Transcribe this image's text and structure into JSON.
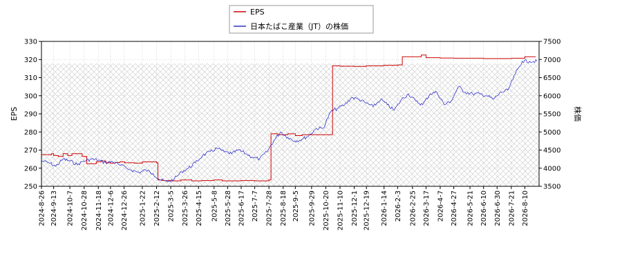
{
  "chart_data": {
    "type": "line",
    "title": "",
    "xlabel": "",
    "ylabel_left": "EPS",
    "ylabel_right": "株価",
    "ylim_left": [
      250,
      330
    ],
    "ylim_right": [
      3500,
      7500
    ],
    "yticks_left": [
      250,
      260,
      270,
      280,
      290,
      300,
      310,
      320,
      330
    ],
    "yticks_right": [
      3500,
      4000,
      4500,
      5000,
      5500,
      6000,
      6500,
      7000,
      7500
    ],
    "xlim": [
      "2024-08-26",
      "2026-08-31"
    ],
    "xticks": [
      "2024-8-26",
      "2024-9-13",
      "2024-10-7",
      "2024-10-28",
      "2024-11-18",
      "2024-12-6",
      "2024-12-26",
      "2025-1-22",
      "2025-2-12",
      "2025-3-5",
      "2025-3-26",
      "2025-4-15",
      "2025-5-8",
      "2025-5-28",
      "2025-6-17",
      "2025-7-7",
      "2025-7-28",
      "2025-8-18",
      "2025-9-5",
      "2025-9-29",
      "2025-10-20",
      "2025-11-10",
      "2025-12-1",
      "2025-12-19",
      "2026-1-14",
      "2026-2-3",
      "2026-2-25",
      "2026-3-17",
      "2026-4-7",
      "2026-4-27",
      "2026-5-21",
      "2026-6-10",
      "2026-6-30",
      "2026-7-21",
      "2026-8-10"
    ],
    "grid": true,
    "legend_position": "top-center",
    "series": [
      {
        "name": "EPS",
        "color": "#cc0000",
        "axis": "left",
        "x": [
          "2024-08-26",
          "2024-09-02",
          "2024-09-10",
          "2024-09-13",
          "2024-09-20",
          "2024-09-27",
          "2024-10-04",
          "2024-10-10",
          "2024-10-18",
          "2024-10-25",
          "2024-11-01",
          "2024-11-08",
          "2024-11-15",
          "2024-11-22",
          "2024-11-29",
          "2024-12-06",
          "2024-12-13",
          "2024-12-20",
          "2024-12-27",
          "2025-01-10",
          "2025-01-22",
          "2025-02-12",
          "2025-02-14",
          "2025-02-20",
          "2025-03-05",
          "2025-03-20",
          "2025-04-05",
          "2025-04-20",
          "2025-05-08",
          "2025-05-20",
          "2025-06-05",
          "2025-06-17",
          "2025-07-07",
          "2025-07-20",
          "2025-07-28",
          "2025-07-31",
          "2025-08-10",
          "2025-08-25",
          "2025-09-05",
          "2025-09-15",
          "2025-09-29",
          "2025-10-10",
          "2025-10-20",
          "2025-10-28",
          "2025-10-30",
          "2025-11-10",
          "2025-12-01",
          "2025-12-19",
          "2026-01-14",
          "2026-02-03",
          "2026-02-10",
          "2026-02-25",
          "2026-03-10",
          "2026-03-17",
          "2026-04-07",
          "2026-04-27",
          "2026-05-21",
          "2026-06-10",
          "2026-06-30",
          "2026-07-21",
          "2026-08-10",
          "2026-08-26"
        ],
        "values": [
          267.5,
          267.5,
          268.0,
          267.0,
          266.5,
          268.0,
          267.0,
          268.0,
          268.0,
          266.5,
          262.5,
          262.5,
          263.5,
          264.0,
          263.0,
          262.8,
          263.2,
          263.5,
          263.0,
          262.8,
          263.5,
          263.0,
          253.5,
          253.2,
          253.0,
          253.5,
          253.0,
          253.2,
          253.5,
          253.0,
          253.0,
          253.2,
          253.0,
          253.0,
          253.5,
          279.0,
          278.5,
          279.0,
          278.0,
          278.5,
          278.5,
          278.5,
          278.5,
          278.5,
          316.5,
          316.3,
          316.2,
          316.5,
          316.8,
          317.0,
          321.5,
          321.5,
          322.5,
          321.0,
          320.8,
          320.7,
          320.7,
          320.5,
          320.5,
          320.7,
          321.5,
          321.5
        ]
      },
      {
        "name": "日本たばこ産業（JT）の株価",
        "color": "#3333cc",
        "axis": "right",
        "x": [
          "2024-08-26",
          "2024-09-06",
          "2024-09-16",
          "2024-09-27",
          "2024-10-07",
          "2024-10-18",
          "2024-10-28",
          "2024-11-08",
          "2024-11-18",
          "2024-11-29",
          "2024-12-09",
          "2024-12-20",
          "2025-01-06",
          "2025-01-17",
          "2025-01-27",
          "2025-02-07",
          "2025-02-17",
          "2025-02-28",
          "2025-03-10",
          "2025-03-21",
          "2025-03-31",
          "2025-04-10",
          "2025-04-21",
          "2025-05-02",
          "2025-05-12",
          "2025-05-23",
          "2025-06-03",
          "2025-06-13",
          "2025-06-24",
          "2025-07-04",
          "2025-07-14",
          "2025-07-25",
          "2025-08-04",
          "2025-08-14",
          "2025-08-25",
          "2025-09-04",
          "2025-09-15",
          "2025-09-25",
          "2025-10-06",
          "2025-10-16",
          "2025-10-27",
          "2025-11-06",
          "2025-11-17",
          "2025-11-27",
          "2025-12-08",
          "2025-12-18",
          "2025-12-29",
          "2026-01-09",
          "2026-01-19",
          "2026-01-29",
          "2026-02-09",
          "2026-02-19",
          "2026-03-02",
          "2026-03-12",
          "2026-03-23",
          "2026-04-02",
          "2026-04-13",
          "2026-04-23",
          "2026-05-04",
          "2026-05-14",
          "2026-05-25",
          "2026-06-04",
          "2026-06-15",
          "2026-06-25",
          "2026-07-06",
          "2026-07-16",
          "2026-07-27",
          "2026-08-06",
          "2026-08-17",
          "2026-08-28"
        ],
        "values": [
          4200,
          4150,
          4050,
          4250,
          4200,
          4100,
          4200,
          4250,
          4220,
          4150,
          4180,
          4080,
          3950,
          3880,
          3950,
          3850,
          3680,
          3620,
          3700,
          3900,
          4000,
          4150,
          4350,
          4450,
          4550,
          4450,
          4400,
          4500,
          4400,
          4300,
          4250,
          4450,
          4750,
          5000,
          4850,
          4750,
          4800,
          4900,
          5100,
          5100,
          5550,
          5650,
          5750,
          5950,
          5900,
          5800,
          5700,
          5900,
          5750,
          5600,
          5900,
          6050,
          5850,
          5750,
          6050,
          6100,
          5750,
          5850,
          6250,
          6100,
          6050,
          6050,
          6000,
          5900,
          6100,
          6150,
          6600,
          6950,
          6950,
          6950
        ]
      }
    ]
  }
}
